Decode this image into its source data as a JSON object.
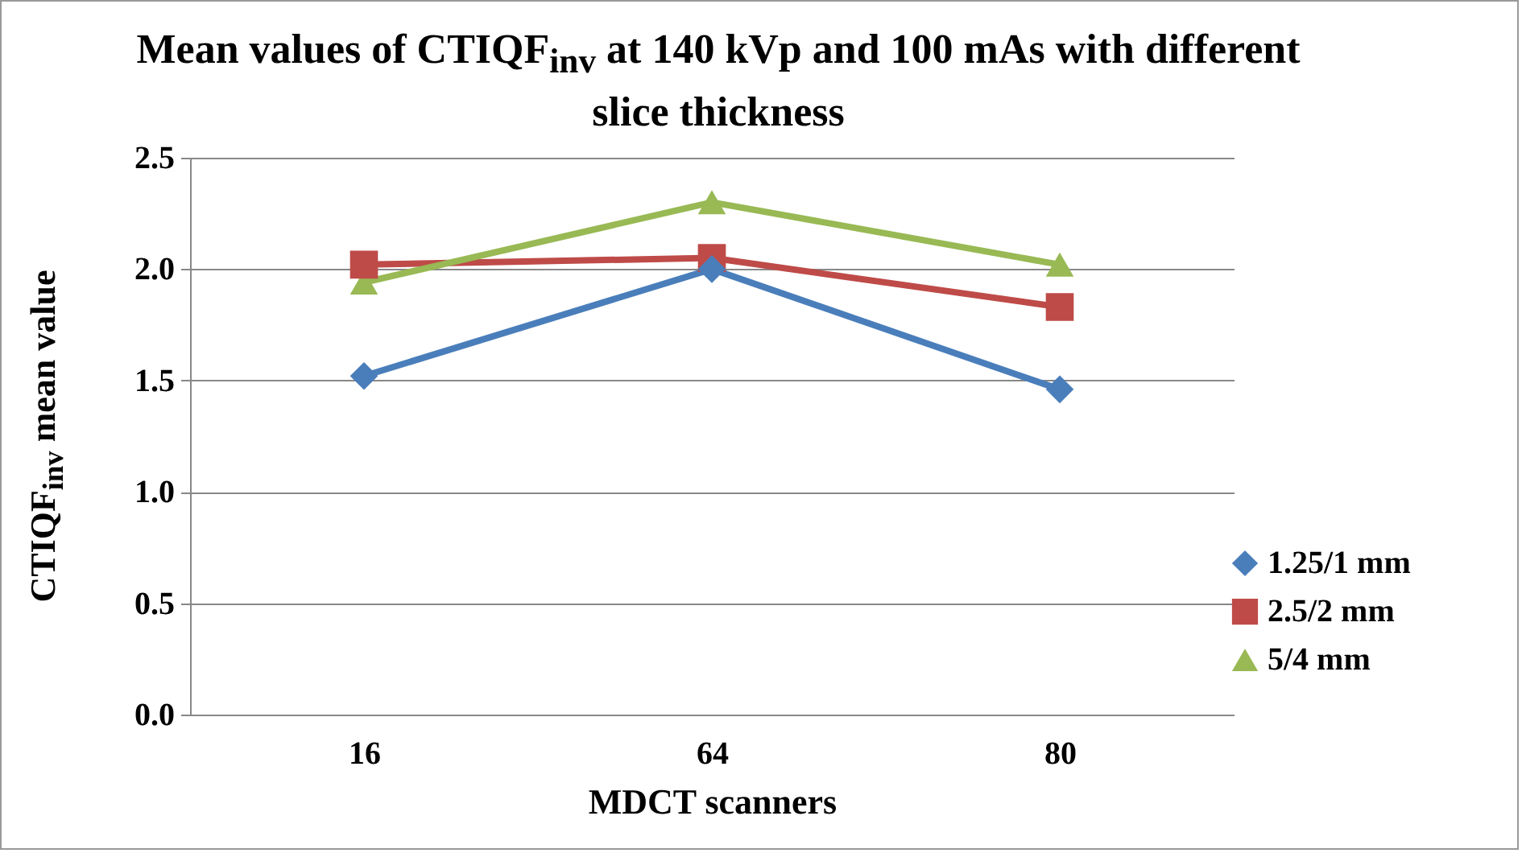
{
  "chart_data": {
    "type": "line",
    "title": "Mean values of CTIQF$_{inv}$  at 140 kVp and 100 mAs with different slice thickness",
    "xlabel": "MDCT scanners",
    "ylabel": "CTIQF$_{inv}$ mean value",
    "categories": [
      "16",
      "64",
      "80"
    ],
    "series": [
      {
        "name": "1.25/1 mm",
        "color": "#4a7ebb",
        "marker": "diamond",
        "values": [
          1.52,
          2.0,
          1.46
        ]
      },
      {
        "name": "2.5/2 mm",
        "color": "#be4b48",
        "marker": "square",
        "values": [
          2.02,
          2.05,
          1.83
        ]
      },
      {
        "name": "5/4 mm",
        "color": "#98b954",
        "marker": "triangle",
        "values": [
          1.94,
          2.3,
          2.02
        ]
      }
    ],
    "ylim": [
      0,
      2.5
    ],
    "yticks": [
      {
        "value": 0,
        "label": "0.0"
      },
      0.5,
      {
        "value": 1,
        "label": "1.0"
      },
      1.5,
      {
        "value": 2,
        "label": "2.0"
      },
      2.5
    ],
    "grid": "y",
    "legend": "right",
    "line_style": "solid"
  }
}
